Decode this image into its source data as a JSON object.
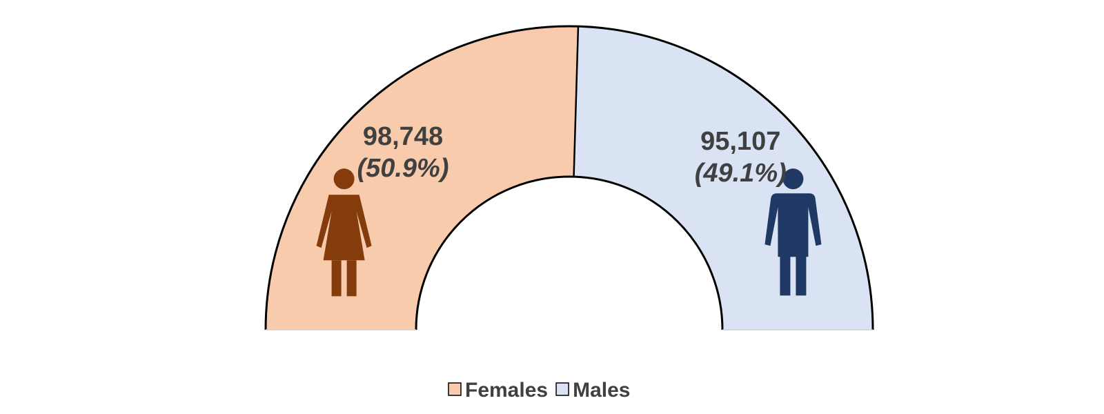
{
  "chart_data": {
    "type": "pie",
    "subtype": "half-donut",
    "series": [
      {
        "name": "Females",
        "value": 98748,
        "value_label": "98,748",
        "percent_label": "(50.9%)",
        "color": "#F8CBAD",
        "icon": "female-person-icon",
        "icon_color": "#843C0C"
      },
      {
        "name": "Males",
        "value": 95107,
        "value_label": "95,107",
        "percent_label": "(49.1%)",
        "color": "#DAE3F3",
        "icon": "male-person-icon",
        "icon_color": "#203864"
      }
    ],
    "label_color": "#404040",
    "outline_color": "#000000",
    "legend": {
      "position": "bottom",
      "entries": [
        "Females",
        "Males"
      ]
    }
  }
}
